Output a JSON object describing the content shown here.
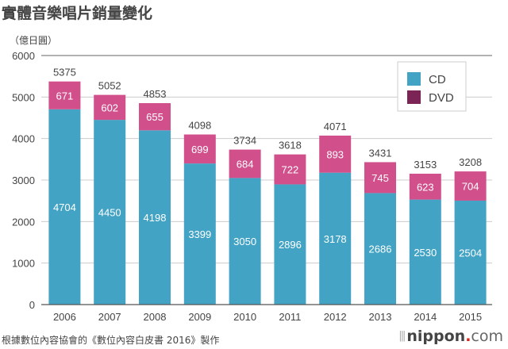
{
  "header": {
    "title": "實體音樂唱片銷量變化",
    "unit": "（億日圓）"
  },
  "footer": {
    "source": "根據數位內容協會的《數位內容白皮書 2016》製作",
    "logo_main": "nippon",
    "logo_dot": ".",
    "logo_suffix": "com"
  },
  "colors": {
    "cd": "#42a3c4",
    "dvd_bar": "#d1508c",
    "dvd_legend": "#7d2456",
    "grid": "#cccccc",
    "axis": "#555555"
  },
  "chart_data": {
    "type": "bar",
    "stacked": true,
    "title": "實體音樂唱片銷量變化",
    "ylabel": "（億日圓）",
    "xlabel": "",
    "categories": [
      "2006",
      "2007",
      "2008",
      "2009",
      "2010",
      "2011",
      "2012",
      "2013",
      "2014",
      "2015"
    ],
    "series": [
      {
        "name": "CD",
        "values": [
          4704,
          4450,
          4198,
          3399,
          3050,
          2896,
          3178,
          2686,
          2530,
          2504
        ]
      },
      {
        "name": "DVD",
        "values": [
          671,
          602,
          655,
          699,
          684,
          722,
          893,
          745,
          623,
          704
        ]
      }
    ],
    "totals": [
      5375,
      5052,
      4853,
      4098,
      3734,
      3618,
      4071,
      3431,
      3153,
      3208
    ],
    "ylim": [
      0,
      6000
    ],
    "yticks": [
      0,
      1000,
      2000,
      3000,
      4000,
      5000,
      6000
    ],
    "grid": true,
    "legend": {
      "position": "top-right",
      "entries": [
        "CD",
        "DVD"
      ]
    },
    "data_labels": true
  }
}
